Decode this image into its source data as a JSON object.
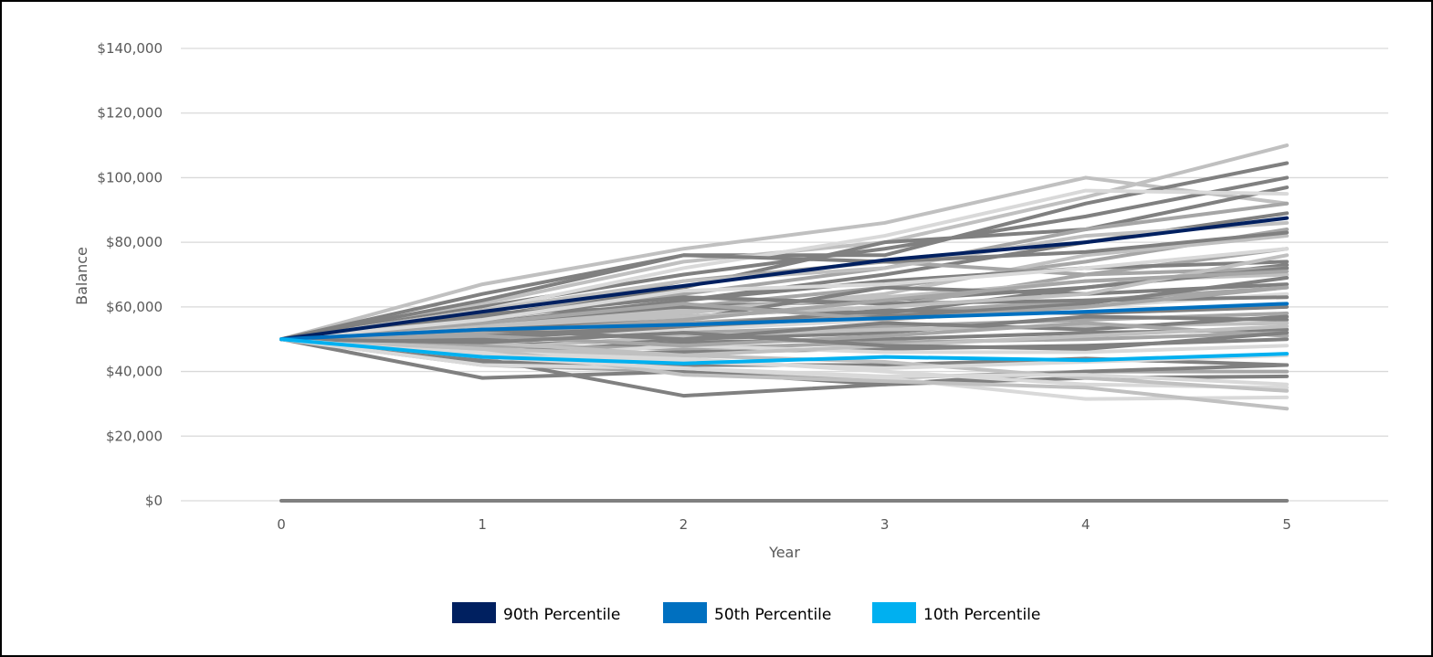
{
  "chart_data": {
    "type": "line",
    "title": "",
    "xlabel": "Year",
    "ylabel": "Balance",
    "x": [
      0,
      1,
      2,
      3,
      4,
      5
    ],
    "x_tick_labels": [
      "0",
      "1",
      "2",
      "3",
      "4",
      "5"
    ],
    "ylim": [
      0,
      140000
    ],
    "y_tick_values": [
      0,
      20000,
      40000,
      60000,
      80000,
      100000,
      120000,
      140000
    ],
    "y_tick_labels": [
      "$0",
      "$20,000",
      "$40,000",
      "$60,000",
      "$80,000",
      "$100,000",
      "$120,000",
      "$140,000"
    ],
    "grid": true,
    "legend_position": "bottom",
    "series": [
      {
        "name": "90th Percentile",
        "values": [
          50000,
          58500,
          66500,
          74500,
          80000,
          87500
        ],
        "color": "#002060"
      },
      {
        "name": "50th Percentile",
        "values": [
          50000,
          53000,
          54500,
          56500,
          58500,
          61000
        ],
        "color": "#0070C0"
      },
      {
        "name": "10th Percentile",
        "values": [
          50000,
          44500,
          42500,
          44500,
          43500,
          45500
        ],
        "color": "#00B0F0"
      }
    ],
    "background_series": [
      {
        "values": [
          0,
          0,
          0,
          0,
          0,
          0
        ],
        "color": "#808080"
      },
      {
        "values": [
          50000,
          67000,
          78000,
          86000,
          100000,
          92000
        ],
        "color": "#C0C0C0"
      },
      {
        "values": [
          50000,
          64000,
          76000,
          76000,
          92000,
          104500
        ],
        "color": "#808080"
      },
      {
        "values": [
          50000,
          61000,
          74000,
          80000,
          94000,
          110000
        ],
        "color": "#C0C0C0"
      },
      {
        "values": [
          50000,
          60000,
          70000,
          78000,
          88000,
          100000
        ],
        "color": "#808080"
      },
      {
        "values": [
          50000,
          57000,
          66000,
          80000,
          84000,
          97000
        ],
        "color": "#808080"
      },
      {
        "values": [
          50000,
          59000,
          72000,
          82000,
          96000,
          95000
        ],
        "color": "#D9D9D9"
      },
      {
        "values": [
          50000,
          56000,
          64000,
          72000,
          84000,
          92000
        ],
        "color": "#A6A6A6"
      },
      {
        "values": [
          50000,
          55000,
          62000,
          70000,
          80000,
          89000
        ],
        "color": "#808080"
      },
      {
        "values": [
          50000,
          54000,
          60000,
          66000,
          74000,
          84000
        ],
        "color": "#A6A6A6"
      },
      {
        "values": [
          50000,
          53000,
          58000,
          64000,
          76000,
          82000
        ],
        "color": "#C0C0C0"
      },
      {
        "values": [
          50000,
          56000,
          68000,
          74000,
          70000,
          78000
        ],
        "color": "#A6A6A6"
      },
      {
        "values": [
          50000,
          52000,
          62000,
          68000,
          72000,
          74000
        ],
        "color": "#808080"
      },
      {
        "values": [
          50000,
          55000,
          60000,
          62000,
          66000,
          73000
        ],
        "color": "#808080"
      },
      {
        "values": [
          50000,
          51000,
          57000,
          60000,
          70000,
          72000
        ],
        "color": "#A6A6A6"
      },
      {
        "values": [
          50000,
          54000,
          59000,
          63000,
          68000,
          70000
        ],
        "color": "#C0C0C0"
      },
      {
        "values": [
          50000,
          53000,
          56000,
          66000,
          64000,
          67000
        ],
        "color": "#808080"
      },
      {
        "values": [
          50000,
          52000,
          55000,
          58000,
          62000,
          66000
        ],
        "color": "#A6A6A6"
      },
      {
        "values": [
          50000,
          50000,
          53000,
          56000,
          60000,
          64000
        ],
        "color": "#D9D9D9"
      },
      {
        "values": [
          50000,
          51000,
          54000,
          59000,
          58000,
          60000
        ],
        "color": "#808080"
      },
      {
        "values": [
          50000,
          49000,
          52000,
          54000,
          56000,
          58000
        ],
        "color": "#A6A6A6"
      },
      {
        "values": [
          50000,
          48000,
          50000,
          52000,
          57000,
          56000
        ],
        "color": "#808080"
      },
      {
        "values": [
          50000,
          47000,
          51000,
          53000,
          54000,
          55000
        ],
        "color": "#C0C0C0"
      },
      {
        "values": [
          50000,
          46000,
          49000,
          50000,
          52000,
          53000
        ],
        "color": "#808080"
      },
      {
        "values": [
          50000,
          48000,
          47000,
          49000,
          50000,
          52000
        ],
        "color": "#A6A6A6"
      },
      {
        "values": [
          50000,
          45000,
          46000,
          47000,
          48000,
          50000
        ],
        "color": "#808080"
      },
      {
        "values": [
          50000,
          44000,
          48000,
          46000,
          46000,
          48000
        ],
        "color": "#D9D9D9"
      },
      {
        "values": [
          50000,
          43000,
          42000,
          42000,
          44000,
          42000
        ],
        "color": "#808080"
      },
      {
        "values": [
          50000,
          42000,
          40000,
          38000,
          40000,
          40000
        ],
        "color": "#A6A6A6"
      },
      {
        "values": [
          50000,
          38000,
          40000,
          36000,
          38000,
          38500
        ],
        "color": "#808080"
      },
      {
        "values": [
          50000,
          44000,
          32500,
          36000,
          40000,
          42000
        ],
        "color": "#808080"
      },
      {
        "values": [
          50000,
          46000,
          44000,
          40000,
          36000,
          35000
        ],
        "color": "#D9D9D9"
      },
      {
        "values": [
          50000,
          42000,
          41000,
          38000,
          31500,
          32000
        ],
        "color": "#D9D9D9"
      },
      {
        "values": [
          50000,
          47000,
          39000,
          37000,
          35000,
          28500
        ],
        "color": "#C0C0C0"
      },
      {
        "values": [
          50000,
          49000,
          45000,
          43000,
          38000,
          34000
        ],
        "color": "#C0C0C0"
      },
      {
        "values": [
          50000,
          58000,
          60000,
          58000,
          66000,
          72000
        ],
        "color": "#808080"
      },
      {
        "values": [
          50000,
          57000,
          63000,
          61000,
          62000,
          63000
        ],
        "color": "#808080"
      },
      {
        "values": [
          50000,
          54000,
          57000,
          60000,
          64000,
          76000
        ],
        "color": "#C0C0C0"
      },
      {
        "values": [
          50000,
          52000,
          56000,
          62000,
          68000,
          71000
        ],
        "color": "#A6A6A6"
      },
      {
        "values": [
          50000,
          50000,
          54000,
          57000,
          61000,
          69000
        ],
        "color": "#808080"
      },
      {
        "values": [
          50000,
          53000,
          50000,
          55000,
          53000,
          57000
        ],
        "color": "#808080"
      },
      {
        "values": [
          50000,
          51000,
          48000,
          51000,
          55000,
          51000
        ],
        "color": "#A6A6A6"
      },
      {
        "values": [
          50000,
          47000,
          45000,
          48000,
          51000,
          54000
        ],
        "color": "#C0C0C0"
      },
      {
        "values": [
          50000,
          49000,
          52000,
          48000,
          47000,
          52000
        ],
        "color": "#808080"
      },
      {
        "values": [
          50000,
          55000,
          61000,
          56000,
          60000,
          66000
        ],
        "color": "#A6A6A6"
      },
      {
        "values": [
          50000,
          56000,
          65000,
          67000,
          72000,
          78000
        ],
        "color": "#D9D9D9"
      },
      {
        "values": [
          50000,
          59000,
          68000,
          72000,
          82000,
          86000
        ],
        "color": "#C0C0C0"
      },
      {
        "values": [
          50000,
          62000,
          76000,
          74000,
          77000,
          83000
        ],
        "color": "#808080"
      },
      {
        "values": [
          50000,
          45000,
          43000,
          41000,
          43000,
          45000
        ],
        "color": "#D9D9D9"
      },
      {
        "values": [
          50000,
          44500,
          41000,
          38500,
          39000,
          36000
        ],
        "color": "#D9D9D9"
      }
    ]
  }
}
